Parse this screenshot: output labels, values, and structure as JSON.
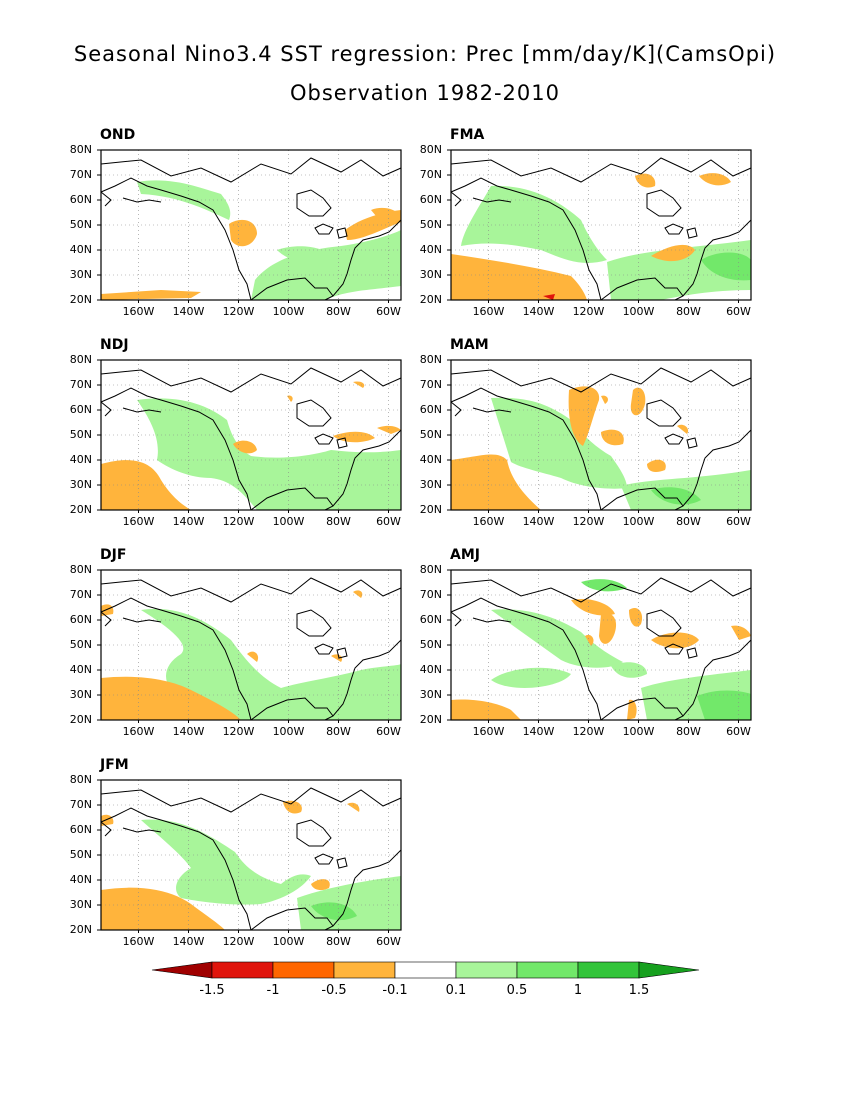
{
  "title_line1": "Seasonal Nino3.4 SST regression: Prec [mm/day/K](CamsOpi)",
  "title_line2": "Observation 1982-2010",
  "axes": {
    "lat_ticks": [
      "80N",
      "70N",
      "60N",
      "50N",
      "40N",
      "30N",
      "20N"
    ],
    "lon_ticks": [
      "160W",
      "140W",
      "120W",
      "100W",
      "80W",
      "60W"
    ]
  },
  "panels": [
    {
      "season": "OND"
    },
    {
      "season": "FMA"
    },
    {
      "season": "NDJ"
    },
    {
      "season": "MAM"
    },
    {
      "season": "DJF"
    },
    {
      "season": "AMJ"
    },
    {
      "season": "JFM"
    }
  ],
  "colorbar": {
    "labels": [
      "-1.5",
      "-1",
      "-0.5",
      "-0.1",
      "0.1",
      "0.5",
      "1",
      "1.5"
    ],
    "colors": [
      "#a00000",
      "#e0140c",
      "#ff6600",
      "#ffb43c",
      "#ffffff",
      "#a8f59a",
      "#72e86a",
      "#33c43a",
      "#16a01e"
    ]
  }
}
